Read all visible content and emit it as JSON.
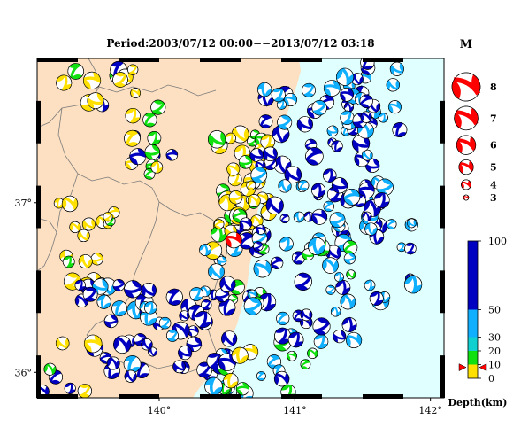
{
  "title": "Period:2003/07/12 00:00−−2013/07/12 03:18",
  "axes": {
    "lon_ticks": [
      {
        "value": 140,
        "label": "140°"
      },
      {
        "value": 141,
        "label": "141°"
      },
      {
        "value": 142,
        "label": "142°"
      }
    ],
    "lat_ticks": [
      {
        "value": 37,
        "label": "37°"
      },
      {
        "value": 36,
        "label": "36°"
      }
    ],
    "lon_range": [
      139.1,
      142.1
    ],
    "lat_range": [
      35.85,
      37.85
    ]
  },
  "colors": {
    "land": "#fde0c2",
    "sea": "#e0ffff",
    "shallow": "#ffe000",
    "green": "#10e010",
    "cyan": "#10b0ff",
    "deep": "#0000c0",
    "main_event": "#ff0000"
  },
  "magnitude_legend": {
    "label": "M",
    "items": [
      {
        "label": "8",
        "m": 8
      },
      {
        "label": "7",
        "m": 7
      },
      {
        "label": "6",
        "m": 6
      },
      {
        "label": "5",
        "m": 5
      },
      {
        "label": "4",
        "m": 4
      },
      {
        "label": "3",
        "m": 3
      }
    ]
  },
  "depth_scale": {
    "title": "Depth(km)",
    "ticks": [
      {
        "label": "100",
        "value": 100
      },
      {
        "label": "50",
        "value": 50
      },
      {
        "label": "30",
        "value": 30
      },
      {
        "label": "20",
        "value": 20
      },
      {
        "label": "10",
        "value": 10
      },
      {
        "label": "0",
        "value": 0
      }
    ],
    "marker_depth": 8
  },
  "main_event": {
    "lon": 140.55,
    "lat": 36.78,
    "m": 6.0
  }
}
